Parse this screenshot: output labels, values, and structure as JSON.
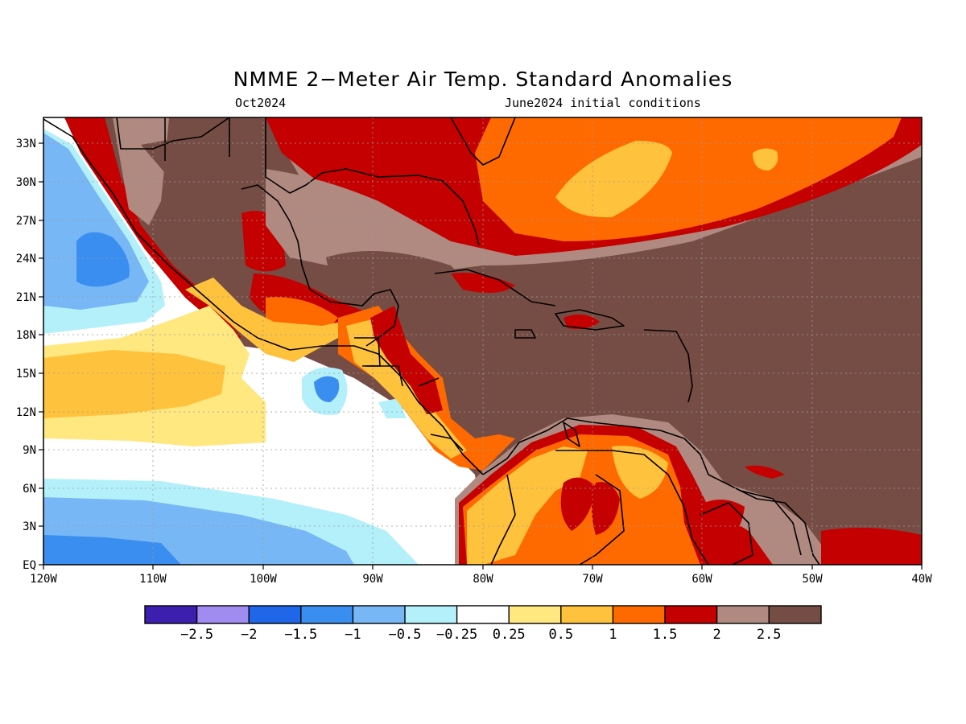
{
  "title": "NMME 2−Meter Air Temp. Standard Anomalies",
  "subtitle_left": "Oct2024",
  "subtitle_right": "June2024 initial conditions",
  "map": {
    "lon_range": [
      -120,
      -40
    ],
    "lat_range": [
      0,
      35
    ],
    "x_tick_labels": [
      "120W",
      "110W",
      "100W",
      "90W",
      "80W",
      "70W",
      "60W",
      "50W",
      "40W"
    ],
    "y_tick_labels": [
      "EQ",
      "3N",
      "6N",
      "9N",
      "12N",
      "15N",
      "18N",
      "21N",
      "24N",
      "27N",
      "30N",
      "33N"
    ],
    "grid": true
  },
  "colorbar": {
    "labels": [
      "−2.5",
      "−2",
      "−1.5",
      "−1",
      "−0.5",
      "−0.25",
      "0.25",
      "0.5",
      "1",
      "1.5",
      "2",
      "2.5"
    ],
    "colors": [
      "#3c1fae",
      "#a08bf0",
      "#1f67e8",
      "#3a8ef0",
      "#78b7f5",
      "#b4f0f9",
      "#ffffff",
      "#ffe880",
      "#ffc23d",
      "#ff6a00",
      "#c40000",
      "#b08a80",
      "#764d45"
    ]
  }
}
